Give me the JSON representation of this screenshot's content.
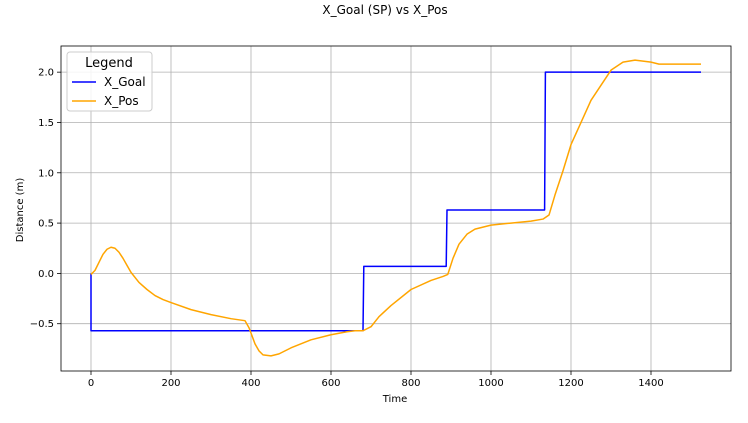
{
  "chart_data": {
    "type": "line",
    "title": "X_Goal (SP) vs X_Pos",
    "xlabel": "Time",
    "ylabel": "Distance (m)",
    "xlim": [
      -75,
      1600
    ],
    "ylim": [
      -0.97,
      2.26
    ],
    "xticks": [
      0,
      200,
      400,
      600,
      800,
      1000,
      1200,
      1400
    ],
    "yticks": [
      -0.5,
      0.0,
      0.5,
      1.0,
      1.5,
      2.0
    ],
    "xtick_labels": [
      "0",
      "200",
      "400",
      "600",
      "800",
      "1000",
      "1200",
      "1400"
    ],
    "ytick_labels": [
      "−0.5",
      "0.0",
      "0.5",
      "1.0",
      "1.5",
      "2.0"
    ],
    "grid": true,
    "legend": {
      "title": "Legend",
      "position": "top-left"
    },
    "series": [
      {
        "name": "X_Goal",
        "color": "#0000ff",
        "style": "step",
        "x": [
          0,
          0,
          2,
          680,
          682,
          888,
          890,
          1134,
          1136,
          1525
        ],
        "y": [
          0.0,
          -0.57,
          -0.57,
          -0.57,
          0.07,
          0.07,
          0.63,
          0.63,
          2.0,
          2.0
        ]
      },
      {
        "name": "X_Pos",
        "color": "#ffa500",
        "style": "line",
        "x": [
          0,
          10,
          20,
          30,
          40,
          50,
          60,
          70,
          80,
          90,
          100,
          120,
          140,
          160,
          180,
          200,
          250,
          300,
          350,
          385,
          395,
          410,
          420,
          430,
          450,
          470,
          500,
          550,
          600,
          640,
          660,
          680,
          700,
          720,
          750,
          800,
          850,
          880,
          892,
          905,
          920,
          940,
          960,
          1000,
          1050,
          1100,
          1130,
          1145,
          1160,
          1180,
          1200,
          1250,
          1300,
          1330,
          1360,
          1400,
          1420,
          1450,
          1525
        ],
        "y": [
          -0.01,
          0.03,
          0.11,
          0.19,
          0.24,
          0.26,
          0.25,
          0.21,
          0.15,
          0.08,
          0.01,
          -0.09,
          -0.16,
          -0.22,
          -0.26,
          -0.29,
          -0.36,
          -0.41,
          -0.45,
          -0.47,
          -0.54,
          -0.7,
          -0.77,
          -0.81,
          -0.82,
          -0.8,
          -0.74,
          -0.66,
          -0.61,
          -0.58,
          -0.57,
          -0.57,
          -0.53,
          -0.43,
          -0.32,
          -0.16,
          -0.07,
          -0.03,
          -0.01,
          0.15,
          0.29,
          0.39,
          0.44,
          0.48,
          0.5,
          0.52,
          0.54,
          0.58,
          0.78,
          1.02,
          1.28,
          1.72,
          2.02,
          2.1,
          2.12,
          2.1,
          2.08,
          2.08,
          2.08
        ]
      }
    ]
  }
}
